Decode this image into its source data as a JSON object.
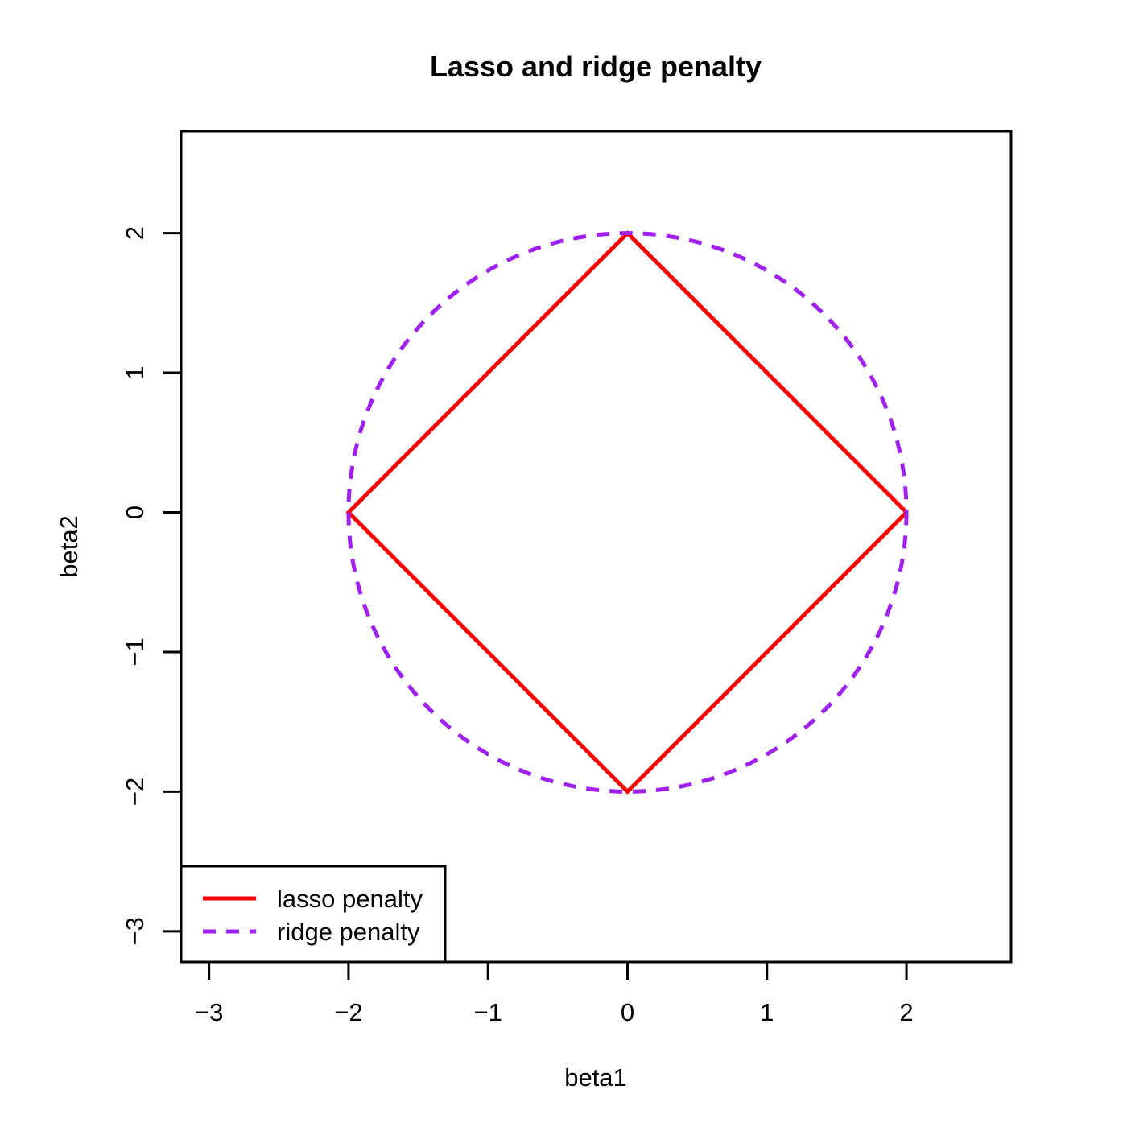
{
  "chart_data": {
    "type": "line",
    "title": "Lasso and ridge penalty",
    "xlabel": "beta1",
    "ylabel": "beta2",
    "xlim": [
      -3.2,
      2.75
    ],
    "ylim": [
      -3.22,
      2.73
    ],
    "x_ticks": [
      -3,
      -2,
      -1,
      0,
      1,
      2
    ],
    "y_ticks": [
      -3,
      -2,
      -1,
      0,
      1,
      2
    ],
    "x_tick_labels": [
      "−3",
      "−2",
      "−1",
      "0",
      "1",
      "2"
    ],
    "y_tick_labels": [
      "−3",
      "−2",
      "−1",
      "0",
      "1",
      "2"
    ],
    "legend_position": "bottom-left",
    "series": [
      {
        "name": "lasso penalty",
        "color": "#ff0000",
        "line_style": "solid",
        "shape": "diamond",
        "x": [
          2,
          0,
          -2,
          0,
          2
        ],
        "y": [
          0,
          2,
          0,
          -2,
          0
        ]
      },
      {
        "name": "ridge penalty",
        "color": "#a020f0",
        "line_style": "dashed",
        "shape": "circle",
        "center": [
          0,
          0
        ],
        "radius": 2
      }
    ]
  }
}
